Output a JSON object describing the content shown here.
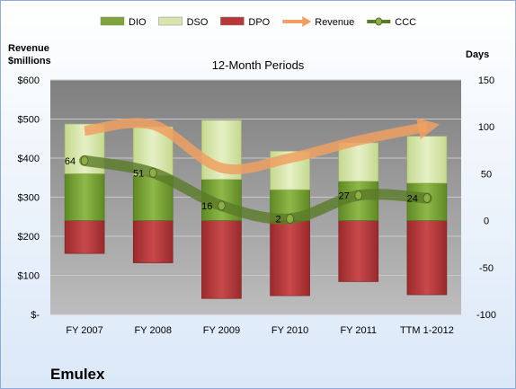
{
  "chart_data": {
    "type": "bar",
    "title": "12-Month Periods",
    "company": "Emulex",
    "categories": [
      "FY 2007",
      "FY 2008",
      "FY 2009",
      "FY 2010",
      "FY 2011",
      "TTM 1-2012"
    ],
    "left_axis": {
      "label_line1": "Revenue",
      "label_line2": "$millions",
      "ticks": [
        "$600",
        "$500",
        "$400",
        "$300",
        "$200",
        "$100",
        "$-"
      ],
      "ylim": [
        0,
        600
      ]
    },
    "right_axis": {
      "label": "Days",
      "ticks": [
        "150",
        "100",
        "50",
        "0",
        "-50",
        "-100"
      ],
      "ylim": [
        -100,
        150
      ]
    },
    "legend": {
      "position": "top",
      "items": [
        {
          "name": "DIO",
          "kind": "bar",
          "color": "#7ea43b"
        },
        {
          "name": "DSO",
          "kind": "bar",
          "color": "#d7e6ae"
        },
        {
          "name": "DPO",
          "kind": "bar",
          "color": "#b5393a"
        },
        {
          "name": "Revenue",
          "kind": "arrow",
          "color": "#f0a062"
        },
        {
          "name": "CCC",
          "kind": "line",
          "color": "#5a7a28"
        }
      ]
    },
    "series": [
      {
        "name": "DIO",
        "axis": "right",
        "values": [
          50,
          48,
          44,
          33,
          42,
          40
        ]
      },
      {
        "name": "DSO",
        "axis": "right",
        "values": [
          53,
          52,
          63,
          41,
          41,
          50
        ]
      },
      {
        "name": "DPO",
        "axis": "right",
        "values": [
          -35,
          -45,
          -83,
          -80,
          -65,
          -79
        ]
      },
      {
        "name": "Revenue",
        "axis": "left",
        "values": [
          470,
          485,
          375,
          400,
          445,
          480
        ]
      },
      {
        "name": "CCC",
        "axis": "right",
        "values": [
          64,
          51,
          16,
          2,
          27,
          24
        ]
      }
    ],
    "ccc_labels": [
      "64",
      "51",
      "16",
      "2",
      "27",
      "24"
    ],
    "grid": true
  }
}
